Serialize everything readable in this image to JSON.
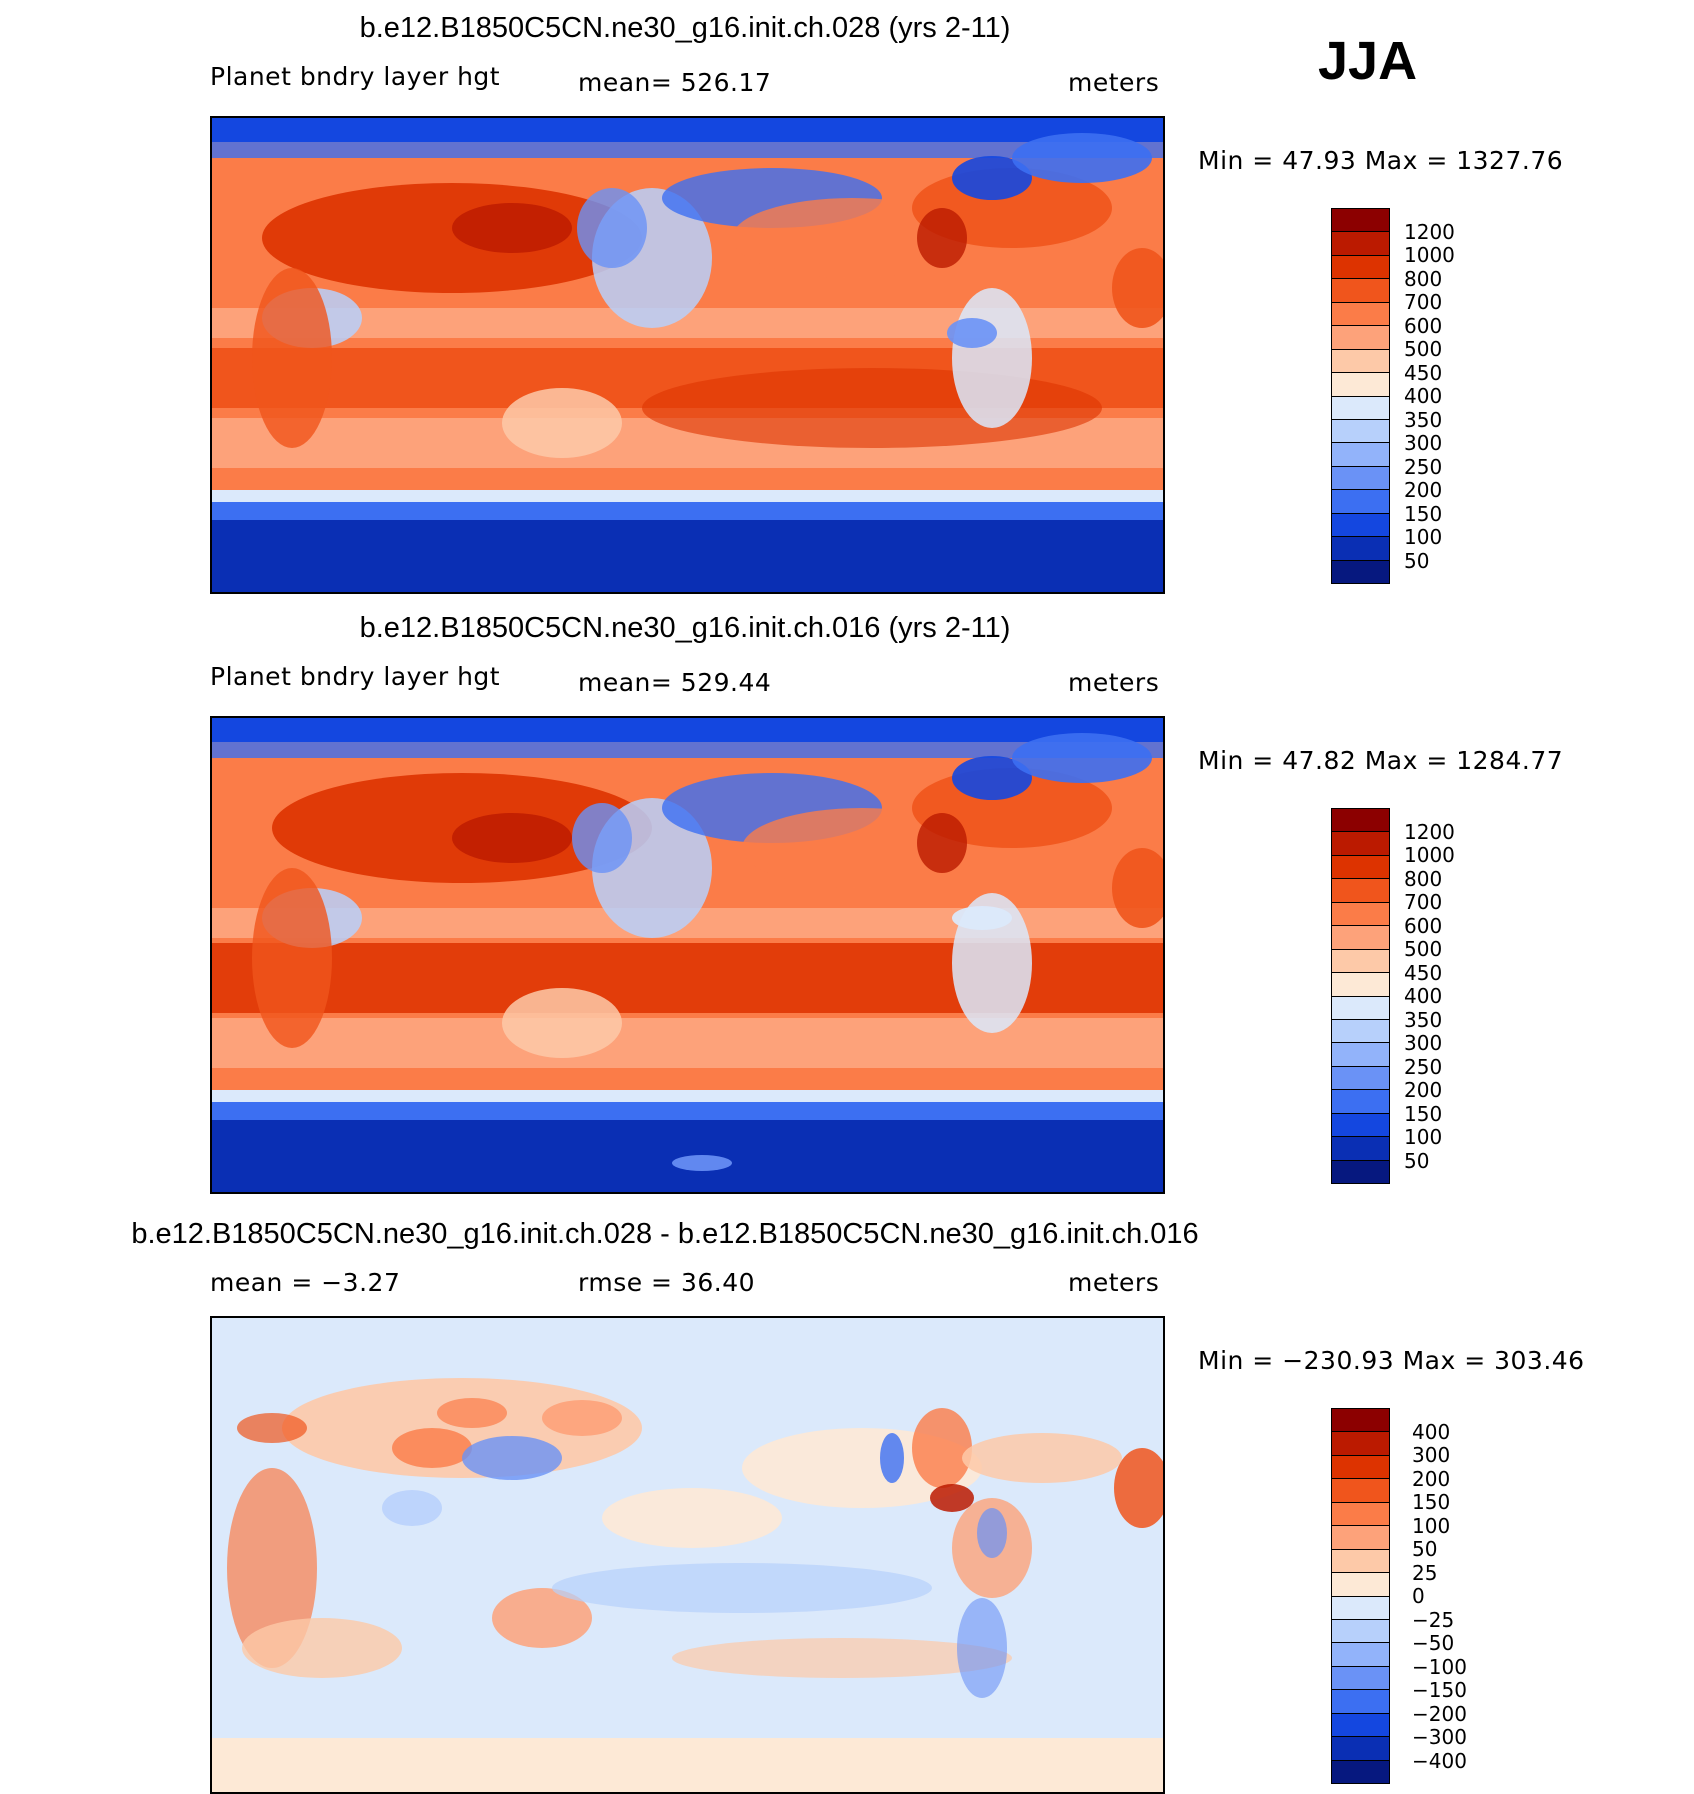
{
  "season": "JJA",
  "chart_data": [
    {
      "type": "heatmap",
      "title": "b.e12.B1850C5CN.ne30_g16.init.ch.028 (yrs 2-11)",
      "variable": "Planet bndry layer hgt",
      "mean_text": "mean=  526.17",
      "units": "meters",
      "min_max_text": "Min =   47.93  Max  =  1327.76",
      "colorbar_labels": [
        "1200",
        "1000",
        "800",
        "700",
        "600",
        "500",
        "450",
        "400",
        "350",
        "300",
        "250",
        "200",
        "150",
        "100",
        "50"
      ],
      "colorbar_colors": [
        "#8c0000",
        "#bb1a00",
        "#dd3300",
        "#f0551c",
        "#fb7c48",
        "#fda27a",
        "#fdc9a8",
        "#fde9d6",
        "#dbe9fb",
        "#b7d0fb",
        "#92b3fa",
        "#6a92f6",
        "#3c6ff2",
        "#1447e0",
        "#0a2fb4",
        "#06187f"
      ]
    },
    {
      "type": "heatmap",
      "title": "b.e12.B1850C5CN.ne30_g16.init.ch.016 (yrs 2-11)",
      "variable": "Planet bndry layer hgt",
      "mean_text": "mean=  529.44",
      "units": "meters",
      "min_max_text": "Min =   47.82  Max  =  1284.77",
      "colorbar_labels": [
        "1200",
        "1000",
        "800",
        "700",
        "600",
        "500",
        "450",
        "400",
        "350",
        "300",
        "250",
        "200",
        "150",
        "100",
        "50"
      ],
      "colorbar_colors": [
        "#8c0000",
        "#bb1a00",
        "#dd3300",
        "#f0551c",
        "#fb7c48",
        "#fda27a",
        "#fdc9a8",
        "#fde9d6",
        "#dbe9fb",
        "#b7d0fb",
        "#92b3fa",
        "#6a92f6",
        "#3c6ff2",
        "#1447e0",
        "#0a2fb4",
        "#06187f"
      ]
    },
    {
      "type": "heatmap",
      "title": "b.e12.B1850C5CN.ne30_g16.init.ch.028 - b.e12.B1850C5CN.ne30_g16.init.ch.016",
      "mean_text": "mean =   −3.27",
      "rmse_text": "rmse =   36.40",
      "units": "meters",
      "min_max_text": "Min = −230.93  Max  =  303.46",
      "colorbar_labels": [
        "400",
        "300",
        "200",
        "150",
        "100",
        "50",
        "25",
        "0",
        "−25",
        "−50",
        "−100",
        "−150",
        "−200",
        "−300",
        "−400"
      ],
      "colorbar_colors": [
        "#8c0000",
        "#bb1a00",
        "#dd3300",
        "#f0551c",
        "#fb7c48",
        "#fda27a",
        "#fdc9a8",
        "#fde9d6",
        "#dbe9fb",
        "#b7d0fb",
        "#92b3fa",
        "#6a92f6",
        "#3c6ff2",
        "#1447e0",
        "#0a2fb4",
        "#06187f"
      ]
    }
  ]
}
